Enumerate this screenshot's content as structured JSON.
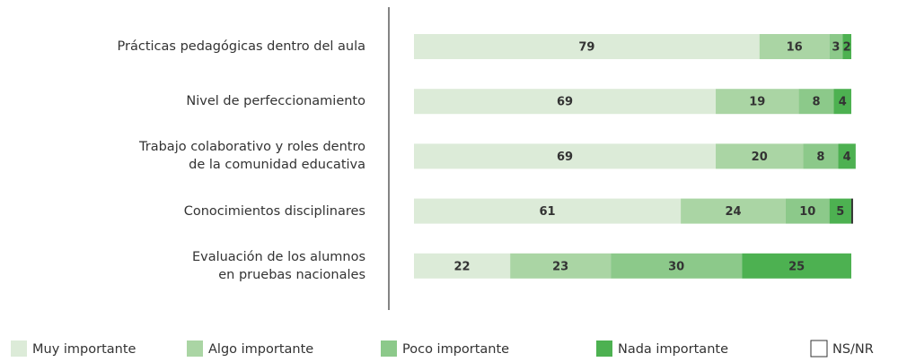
{
  "chart_data": {
    "type": "stacked_bar_horizontal",
    "categories": [
      "Prácticas pedagógicas dentro del aula",
      "Nivel de perfeccionamiento",
      "Trabajo colaborativo y roles dentro\nde la comunidad educativa",
      "Conocimientos disciplinares",
      "Evaluación de los alumnos\nen pruebas nacionales"
    ],
    "series": [
      {
        "name": "Muy importante",
        "color": "#dcebd8",
        "values": [
          79,
          69,
          69,
          61,
          22
        ]
      },
      {
        "name": "Algo importante",
        "color": "#aad5a4",
        "values": [
          16,
          19,
          20,
          24,
          23
        ]
      },
      {
        "name": "Poco importante",
        "color": "#8cc98a",
        "values": [
          3,
          8,
          8,
          10,
          30
        ]
      },
      {
        "name": "Nada importante",
        "color": "#4db151",
        "values": [
          2,
          4,
          4,
          5,
          25
        ]
      },
      {
        "name": "NS/NR",
        "color": "#333333",
        "values": [
          0,
          0,
          0,
          0.4,
          0
        ]
      }
    ],
    "xlim": [
      0,
      100
    ]
  }
}
